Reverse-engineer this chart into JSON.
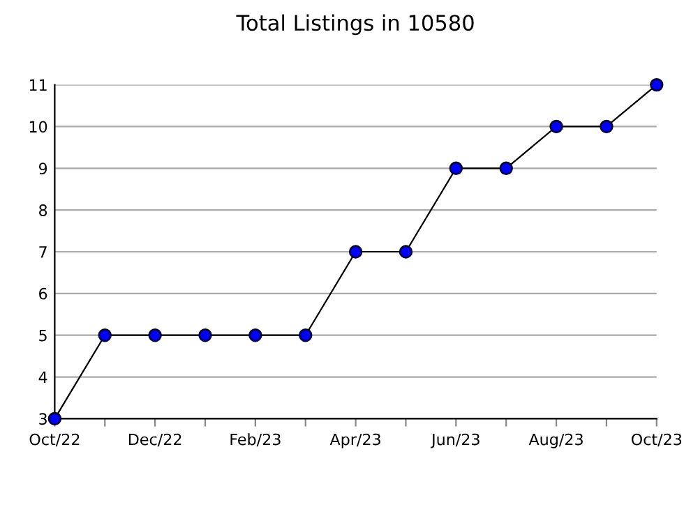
{
  "chart_data": {
    "type": "line",
    "title": "Total Listings in 10580",
    "categories": [
      "Oct/22",
      null,
      "Dec/22",
      null,
      "Feb/23",
      null,
      "Apr/23",
      null,
      "Jun/23",
      null,
      "Aug/23",
      null,
      "Oct/23"
    ],
    "series": [
      {
        "color": "#0000ff",
        "values": [
          3,
          5,
          5,
          5,
          5,
          5,
          7,
          7,
          9,
          9,
          10,
          10,
          11
        ]
      }
    ],
    "ylim": [
      3,
      11
    ],
    "yticks": [
      3,
      4,
      5,
      6,
      7,
      8,
      9,
      10,
      11
    ],
    "grid": "y",
    "marker": "circle",
    "line_style": "solid"
  }
}
